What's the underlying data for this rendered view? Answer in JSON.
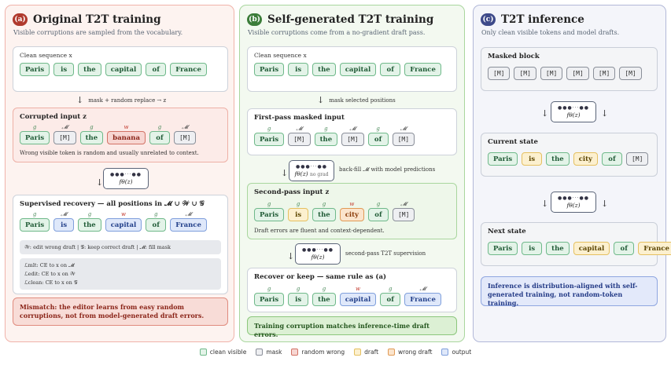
{
  "panels": [
    {
      "badge": "(a)",
      "title": "Original T2T training",
      "subtitle": "Visible corruptions are sampled from the vocabulary."
    },
    {
      "badge": "(b)",
      "title": "Self-generated T2T training",
      "subtitle": "Visible corruptions come from a no-gradient draft pass."
    },
    {
      "badge": "(c)",
      "title": "T2T inference",
      "subtitle": "Only clean visible tokens and model drafts."
    }
  ],
  "tokens": {
    "paris": "Paris",
    "is": "is",
    "the": "the",
    "capital": "capital",
    "of": "of",
    "france": "France",
    "mask": "[M]",
    "banana": "banana",
    "city": "city"
  },
  "marks": {
    "g": "g",
    "a": "𝓜",
    "w": "w"
  },
  "model": {
    "dots": "●●●···●●",
    "label": "fθ(z)",
    "nograd": "no grad"
  },
  "a": {
    "clean_label": "Clean sequence x",
    "arrow1": "mask + random replace → z",
    "corrupted_title": "Corrupted input z",
    "corrupted_note": "Wrong visible token is random and usually unrelated to context.",
    "recovery_title": "Supervised recovery — all positions in 𝓜 ∪ 𝒲 ∪ 𝒢",
    "legend_line": "𝒲: edit wrong draft  |  𝒢: keep correct draft  |  𝓜: fill mask",
    "loss1": "ℒmlt: CE to x on 𝓜",
    "loss2": "ℒedit: CE to x on 𝒲",
    "loss3": "ℒclean: CE to x on 𝒢",
    "callout": "Mismatch: the editor learns from easy random corruptions, not from model-generated draft errors."
  },
  "b": {
    "clean_label": "Clean sequence x",
    "arrow1": "mask selected positions",
    "first_title": "First-pass masked input",
    "backfill": "back-fill 𝓜 with model predictions",
    "second_title": "Second-pass input z",
    "second_note": "Draft errors are fluent and context-dependent.",
    "supervision": "second-pass T2T supervision",
    "recover_title": "Recover or keep — same rule as (a)",
    "callout": "Training corruption matches inference-time draft errors."
  },
  "c": {
    "masked_title": "Masked block",
    "current_title": "Current state",
    "next_title": "Next state",
    "callout": "Inference is distribution-aligned with self-generated training, not random-token training."
  },
  "legend": [
    "clean visible",
    "mask",
    "random wrong",
    "draft",
    "wrong draft",
    "output"
  ],
  "colors": {
    "clean": "#e3f3e8",
    "mask": "#eeeff2",
    "random_wrong": "#f7d6d2",
    "draft": "#fcf0cf",
    "wrong_draft": "#fbe4cc",
    "output": "#dfe8fa"
  }
}
